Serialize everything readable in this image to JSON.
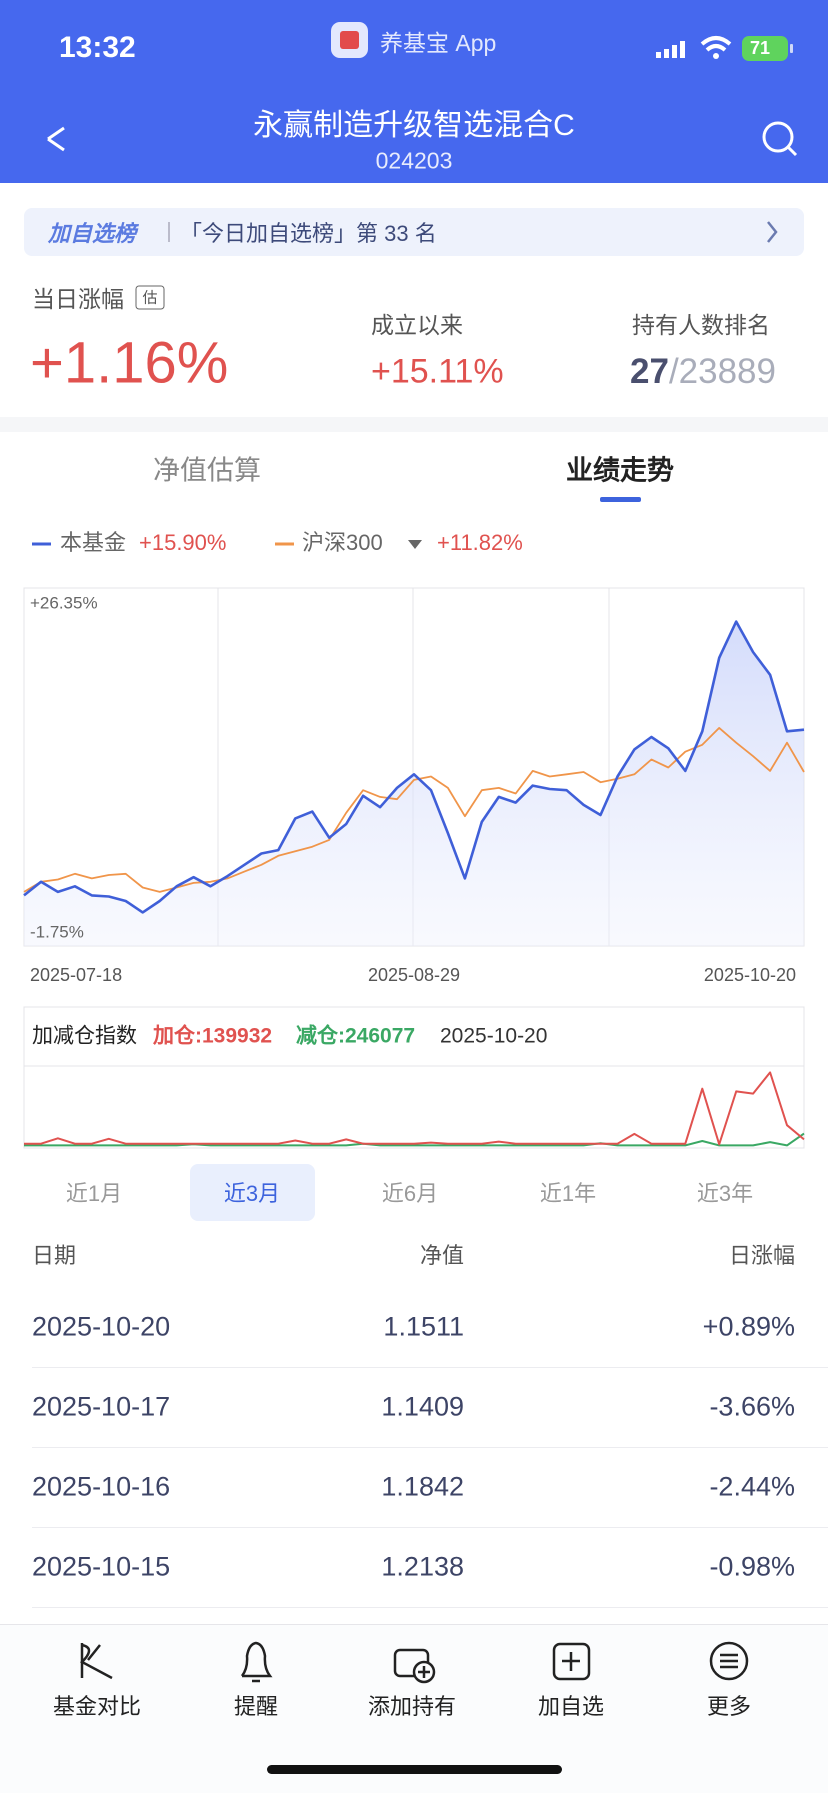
{
  "status_bar": {
    "time": "13:32",
    "app": "养基宝 App",
    "battery": "71"
  },
  "header": {
    "title": "永赢制造升级智选混合C",
    "code": "024203"
  },
  "banner": {
    "tag": "加自选榜",
    "text": "「今日加自选榜」第 33 名"
  },
  "stats": [
    {
      "label": "当日涨幅",
      "badge": "估",
      "value": "+1.16%"
    },
    {
      "label": "成立以来",
      "value": "+15.11%"
    },
    {
      "label": "持有人数排名",
      "rank": "27",
      "total": "/23889"
    }
  ],
  "tabs": [
    "净值估算",
    "业绩走势"
  ],
  "chart_data": [
    {
      "type": "line",
      "categories": [
        "2025-07-18",
        null,
        null,
        null,
        null,
        null,
        null,
        null,
        null,
        null,
        null,
        null,
        null,
        null,
        null,
        null,
        null,
        null,
        null,
        null,
        null,
        null,
        null,
        "2025-08-29",
        null,
        null,
        null,
        null,
        null,
        null,
        null,
        null,
        null,
        null,
        null,
        null,
        null,
        null,
        null,
        null,
        null,
        null,
        null,
        null,
        null,
        null,
        "2025-10-20"
      ],
      "ylim": [
        -4.8,
        29.4
      ],
      "yticks": [
        {
          "value": 26.35,
          "label": "+26.35%"
        },
        {
          "value": -1.75,
          "label": "-1.75%"
        }
      ],
      "series": [
        {
          "name": "本基金",
          "legend_value": "+15.90%",
          "color": "#3f5fd8",
          "values": [
            -0.1,
            1.21,
            0.23,
            0.77,
            -0.1,
            -0.21,
            -0.65,
            -1.75,
            -0.65,
            0.77,
            1.65,
            0.77,
            1.76,
            2.85,
            3.94,
            4.27,
            7.33,
            7.99,
            5.47,
            6.79,
            9.52,
            8.42,
            10.28,
            11.59,
            10.06,
            5.91,
            1.54,
            7.0,
            9.41,
            8.86,
            10.5,
            10.17,
            10.06,
            8.64,
            7.66,
            11.38,
            14.0,
            15.2,
            14.11,
            11.92,
            15.75,
            22.85,
            26.35,
            23.4,
            21.21,
            15.75,
            15.9
          ]
        },
        {
          "name": "沪深300",
          "legend_value": "+11.82%",
          "color": "#f0954a",
          "values": [
            0.23,
            1.21,
            1.43,
            1.98,
            1.54,
            1.87,
            1.98,
            0.66,
            0.23,
            0.66,
            1.1,
            1.21,
            1.54,
            2.19,
            2.85,
            3.72,
            4.16,
            4.6,
            5.26,
            7.88,
            10.06,
            9.41,
            9.19,
            11.05,
            11.38,
            10.28,
            7.55,
            10.06,
            10.28,
            9.74,
            11.92,
            11.38,
            11.59,
            11.82,
            10.83,
            11.16,
            11.59,
            13.02,
            12.25,
            13.78,
            14.44,
            16.08,
            14.65,
            13.34,
            11.92,
            14.65,
            11.82
          ]
        }
      ]
    },
    {
      "type": "line",
      "title": "加减仓指数",
      "date": "2025-10-20",
      "ylim": [
        0,
        1450000
      ],
      "series": [
        {
          "label": "加仓:139932",
          "color": "#e0524f",
          "values": [
            60000,
            60000,
            160000,
            60000,
            60000,
            150000,
            60000,
            60000,
            60000,
            60000,
            60000,
            60000,
            60000,
            60000,
            60000,
            60000,
            120000,
            60000,
            60000,
            140000,
            60000,
            60000,
            60000,
            60000,
            80000,
            60000,
            60000,
            60000,
            100000,
            60000,
            60000,
            60000,
            60000,
            60000,
            60000,
            60000,
            240000,
            60000,
            60000,
            60000,
            1070000,
            50000,
            1020000,
            980000,
            1370000,
            400000,
            139932
          ]
        },
        {
          "label": "减仓:246077",
          "color": "#3aa864",
          "values": [
            30000,
            30000,
            30000,
            30000,
            30000,
            30000,
            30000,
            30000,
            30000,
            30000,
            50000,
            30000,
            30000,
            30000,
            30000,
            30000,
            30000,
            30000,
            30000,
            30000,
            60000,
            30000,
            30000,
            30000,
            30000,
            30000,
            30000,
            30000,
            30000,
            30000,
            30000,
            30000,
            30000,
            30000,
            70000,
            30000,
            30000,
            30000,
            30000,
            30000,
            110000,
            30000,
            30000,
            30000,
            90000,
            30000,
            246077
          ]
        }
      ]
    }
  ],
  "periods": [
    "近1月",
    "近3月",
    "近6月",
    "近1年",
    "近3年"
  ],
  "table": {
    "columns": [
      "日期",
      "净值",
      "日涨幅"
    ],
    "rows": [
      [
        "2025-10-20",
        "1.1511",
        "+0.89%"
      ],
      [
        "2025-10-17",
        "1.1409",
        "-3.66%"
      ],
      [
        "2025-10-16",
        "1.1842",
        "-2.44%"
      ],
      [
        "2025-10-15",
        "1.2138",
        "-0.98%"
      ]
    ]
  },
  "toolbar": [
    "基金对比",
    "提醒",
    "添加持有",
    "加自选",
    "更多"
  ]
}
